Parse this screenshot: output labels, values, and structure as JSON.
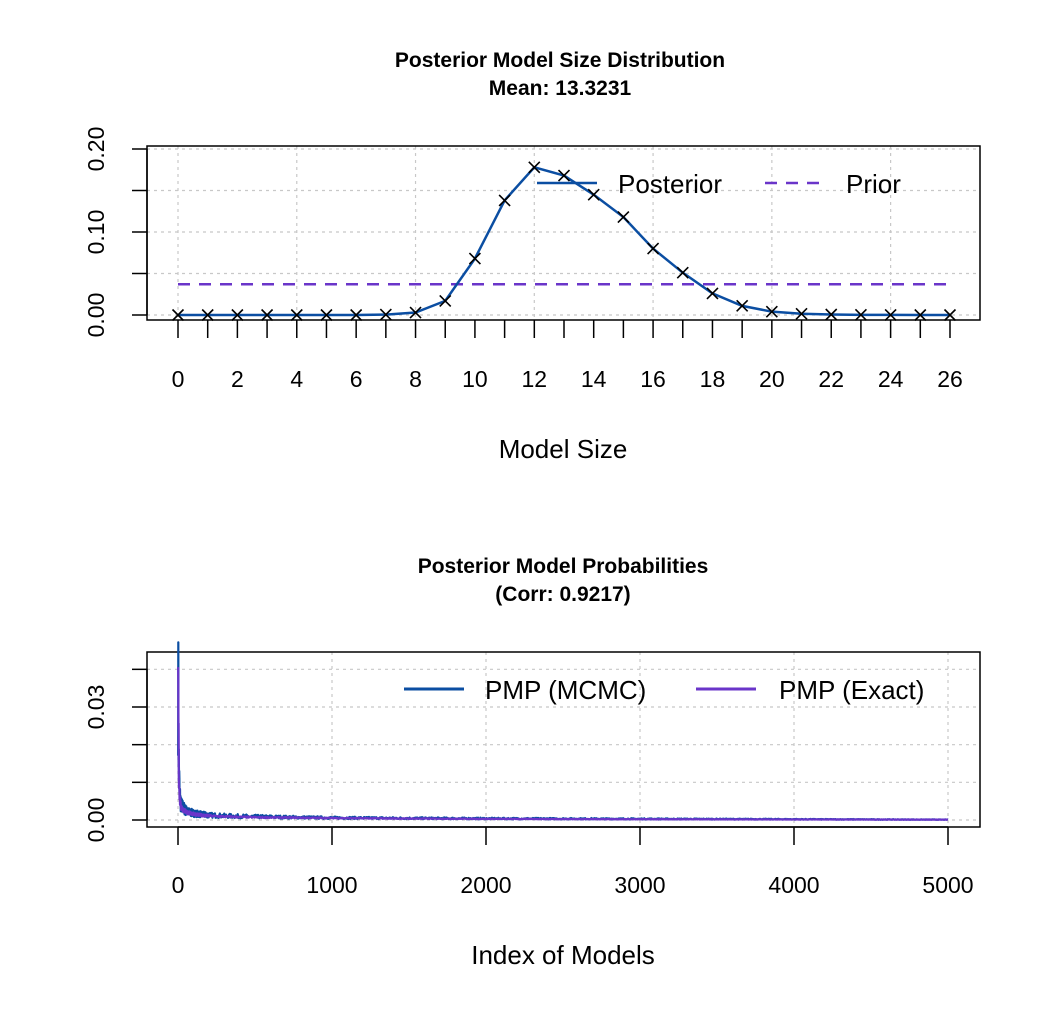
{
  "chart_data": [
    {
      "type": "line",
      "title": "Posterior Model Size Distribution",
      "subtitle": "Mean: 13.3231",
      "xlabel": "Model Size",
      "ylabel": "",
      "x": [
        0,
        1,
        2,
        3,
        4,
        5,
        6,
        7,
        8,
        9,
        10,
        11,
        12,
        13,
        14,
        15,
        16,
        17,
        18,
        19,
        20,
        21,
        22,
        23,
        24,
        25,
        26
      ],
      "x_tick_labels": [
        "0",
        "2",
        "4",
        "6",
        "8",
        "10",
        "12",
        "14",
        "16",
        "18",
        "20",
        "22",
        "24",
        "26"
      ],
      "y_tick_labels": [
        "0.00",
        "0.10",
        "0.20"
      ],
      "ylim": [
        0,
        0.2
      ],
      "grid": true,
      "legend_position": "top-right",
      "series": [
        {
          "name": "Posterior",
          "color": "#0b4ea2",
          "marker": "x",
          "values": [
            0.0,
            0.0,
            0.0,
            0.0,
            0.0,
            0.0,
            0.0,
            0.0005,
            0.003,
            0.017,
            0.068,
            0.138,
            0.178,
            0.168,
            0.145,
            0.118,
            0.08,
            0.051,
            0.026,
            0.011,
            0.004,
            0.0015,
            0.0006,
            0.0002,
            0.0001,
            0.0,
            0.0
          ]
        },
        {
          "name": "Prior",
          "color": "#6a35c9",
          "dashed": true,
          "values": [
            0.037,
            0.037,
            0.037,
            0.037,
            0.037,
            0.037,
            0.037,
            0.037,
            0.037,
            0.037,
            0.037,
            0.037,
            0.037,
            0.037,
            0.037,
            0.037,
            0.037,
            0.037,
            0.037,
            0.037,
            0.037,
            0.037,
            0.037,
            0.037,
            0.037,
            0.037,
            0.037
          ]
        }
      ]
    },
    {
      "type": "line",
      "title": "Posterior Model Probabilities",
      "subtitle": "(Corr: 0.9217)",
      "xlabel": "Index of Models",
      "ylabel": "",
      "x_tick_labels": [
        "0",
        "1000",
        "2000",
        "3000",
        "4000",
        "5000"
      ],
      "y_tick_labels": [
        "0.00",
        "0.03"
      ],
      "xlim": [
        0,
        5000
      ],
      "ylim": [
        0,
        0.04
      ],
      "grid": true,
      "legend_position": "top-right",
      "series": [
        {
          "name": "PMP (MCMC)",
          "color": "#0b4ea2",
          "n_models": 5000,
          "x": [
            1,
            5,
            10,
            20,
            40,
            60,
            100,
            150,
            200,
            300,
            500,
            800,
            1000,
            1400,
            2000,
            3000,
            4000,
            5000
          ],
          "values": [
            0.038,
            0.015,
            0.007,
            0.004,
            0.003,
            0.0022,
            0.0018,
            0.0015,
            0.0013,
            0.0011,
            0.0009,
            0.0007,
            0.0006,
            0.0005,
            0.0004,
            0.0003,
            0.0002,
            0.0001
          ]
        },
        {
          "name": "PMP (Exact)",
          "color": "#6a35c9",
          "n_models": 5000,
          "x": [
            1,
            5,
            10,
            20,
            40,
            60,
            100,
            150,
            200,
            300,
            500,
            800,
            1000,
            1400,
            2000,
            3000,
            4000,
            5000
          ],
          "values": [
            0.041,
            0.014,
            0.006,
            0.0035,
            0.0025,
            0.002,
            0.0016,
            0.0013,
            0.0011,
            0.0009,
            0.0007,
            0.0006,
            0.0005,
            0.0004,
            0.0003,
            0.0002,
            0.00015,
            0.0001
          ]
        }
      ]
    }
  ]
}
